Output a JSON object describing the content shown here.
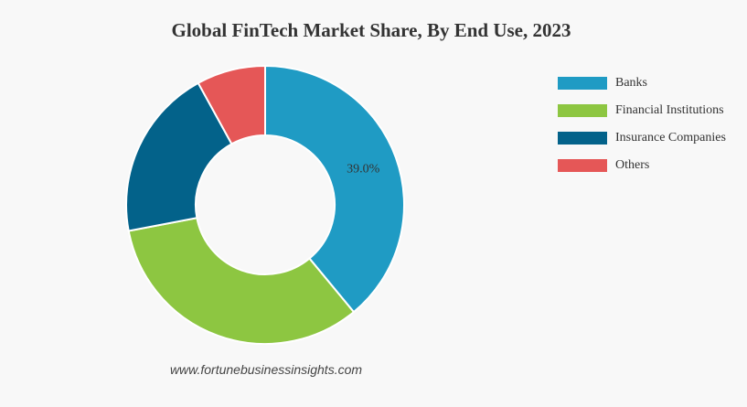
{
  "chart_data": {
    "type": "pie",
    "title": "Global FinTech Market Share, By End Use, 2023",
    "categories": [
      "Banks",
      "Financial Institutions",
      "Insurance Companies",
      "Others"
    ],
    "values": [
      39.0,
      33.0,
      20.0,
      8.0
    ],
    "value_labels": [
      "39.0%",
      null,
      null,
      null
    ],
    "colors": [
      "#1f9bc4",
      "#8dc641",
      "#03628a",
      "#e55757"
    ],
    "legend": "top-right",
    "source": "www.fortunebusinessinsights.com"
  }
}
